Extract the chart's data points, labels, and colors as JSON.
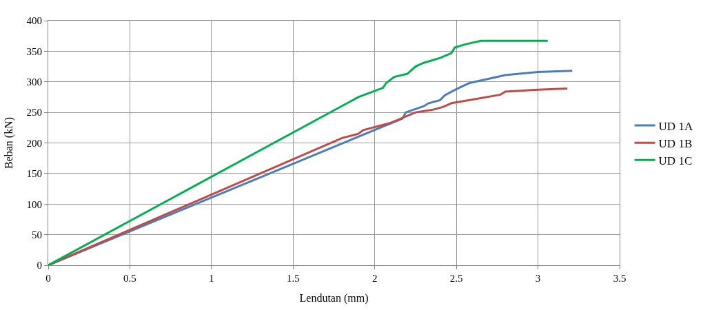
{
  "chart_data": {
    "type": "line",
    "xlabel": "Lendutan (mm)",
    "ylabel": "Beban (kN)",
    "xlim": [
      0,
      3.5
    ],
    "xticks": [
      0,
      0.5,
      1,
      1.5,
      2,
      2.5,
      3,
      3.5
    ],
    "ylim": [
      0,
      400
    ],
    "yticks": [
      0,
      50,
      100,
      150,
      200,
      250,
      300,
      350,
      400
    ],
    "grid": true,
    "legend": "right",
    "series": [
      {
        "name": "UD 1A",
        "color": "#4a7ebb",
        "x": [
          0,
          2.17,
          2.19,
          2.3,
          2.33,
          2.4,
          2.43,
          2.5,
          2.58,
          2.7,
          2.8,
          3.0,
          3.21
        ],
        "values": [
          0,
          240,
          250,
          260,
          265,
          270,
          278,
          288,
          298,
          305,
          311,
          316,
          318
        ]
      },
      {
        "name": "UD 1B",
        "color": "#be4b48",
        "x": [
          0,
          1.8,
          1.9,
          1.93,
          2.1,
          2.18,
          2.25,
          2.35,
          2.42,
          2.47,
          2.6,
          2.77,
          2.8,
          3.0,
          3.18
        ],
        "values": [
          0,
          208,
          215,
          221,
          233,
          242,
          250,
          254,
          259,
          265,
          271,
          279,
          284,
          287,
          289
        ]
      },
      {
        "name": "UD 1C",
        "color": "#00b050",
        "x": [
          0,
          1.9,
          2.05,
          2.07,
          2.12,
          2.2,
          2.25,
          2.3,
          2.4,
          2.47,
          2.49,
          2.55,
          2.65,
          2.7,
          3.06
        ],
        "values": [
          0,
          275,
          290,
          298,
          308,
          313,
          325,
          331,
          339,
          347,
          356,
          361,
          367,
          367,
          367
        ]
      }
    ]
  }
}
